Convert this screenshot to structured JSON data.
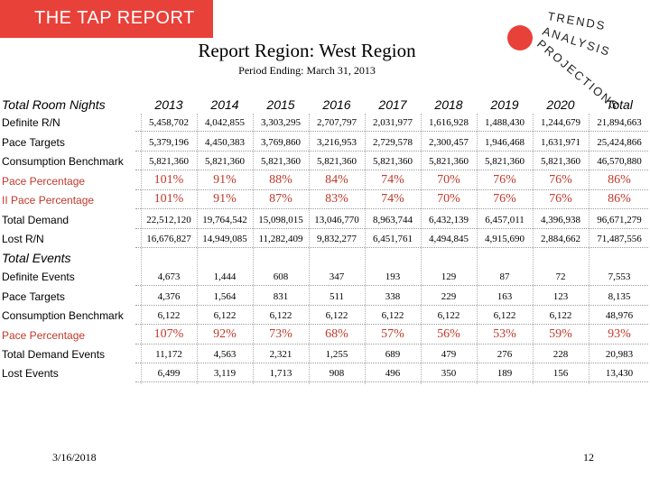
{
  "banner": "THE TAP REPORT",
  "logo_words": [
    "TRENDS",
    "ANALYSIS",
    "PROJECTIONS"
  ],
  "title": "Report Region: West Region",
  "period": "Period Ending: March 31, 2013",
  "room_section": "Total Room Nights",
  "events_section": "Total Events",
  "years": [
    "2013",
    "2014",
    "2015",
    "2016",
    "2017",
    "2018",
    "2019",
    "2020",
    "Total"
  ],
  "room_rows": [
    {
      "label": "Definite R/N",
      "type": "num",
      "values": [
        "5,458,702",
        "4,042,855",
        "3,303,295",
        "2,707,797",
        "2,031,977",
        "1,616,928",
        "1,488,430",
        "1,244,679",
        "21,894,663"
      ]
    },
    {
      "label": "Pace Targets",
      "type": "num",
      "values": [
        "5,379,196",
        "4,450,383",
        "3,769,860",
        "3,216,953",
        "2,729,578",
        "2,300,457",
        "1,946,468",
        "1,631,971",
        "25,424,866"
      ]
    },
    {
      "label": "Consumption Benchmark",
      "type": "num",
      "values": [
        "5,821,360",
        "5,821,360",
        "5,821,360",
        "5,821,360",
        "5,821,360",
        "5,821,360",
        "5,821,360",
        "5,821,360",
        "46,570,880"
      ]
    },
    {
      "label": "Pace Percentage",
      "type": "pace",
      "values": [
        "101%",
        "91%",
        "88%",
        "84%",
        "74%",
        "70%",
        "76%",
        "76%",
        "86%"
      ]
    },
    {
      "label": "II Pace Percentage",
      "type": "pace",
      "values": [
        "101%",
        "91%",
        "87%",
        "83%",
        "74%",
        "70%",
        "76%",
        "76%",
        "86%"
      ]
    },
    {
      "label": "Total Demand",
      "type": "num",
      "values": [
        "22,512,120",
        "19,764,542",
        "15,098,015",
        "13,046,770",
        "8,963,744",
        "6,432,139",
        "6,457,011",
        "4,396,938",
        "96,671,279"
      ]
    },
    {
      "label": "Lost R/N",
      "type": "num",
      "values": [
        "16,676,827",
        "14,949,085",
        "11,282,409",
        "9,832,277",
        "6,451,761",
        "4,494,845",
        "4,915,690",
        "2,884,662",
        "71,487,556"
      ]
    }
  ],
  "event_rows": [
    {
      "label": "Definite Events",
      "type": "num",
      "values": [
        "4,673",
        "1,444",
        "608",
        "347",
        "193",
        "129",
        "87",
        "72",
        "7,553"
      ]
    },
    {
      "label": "Pace Targets",
      "type": "num",
      "values": [
        "4,376",
        "1,564",
        "831",
        "511",
        "338",
        "229",
        "163",
        "123",
        "8,135"
      ]
    },
    {
      "label": "Consumption Benchmark",
      "type": "num",
      "values": [
        "6,122",
        "6,122",
        "6,122",
        "6,122",
        "6,122",
        "6,122",
        "6,122",
        "6,122",
        "48,976"
      ]
    },
    {
      "label": "Pace Percentage",
      "type": "pace",
      "values": [
        "107%",
        "92%",
        "73%",
        "68%",
        "57%",
        "56%",
        "53%",
        "59%",
        "93%"
      ]
    },
    {
      "label": "Total Demand Events",
      "type": "num",
      "values": [
        "11,172",
        "4,563",
        "2,321",
        "1,255",
        "689",
        "479",
        "276",
        "228",
        "20,983"
      ]
    },
    {
      "label": "Lost Events",
      "type": "num",
      "values": [
        "6,499",
        "3,119",
        "1,713",
        "908",
        "496",
        "350",
        "189",
        "156",
        "13,430"
      ]
    }
  ],
  "footer": {
    "date": "3/16/2018",
    "page": "12"
  },
  "colors": {
    "banner": "#e8413a",
    "pace_text": "#c0392b",
    "logo_dot": "#e8413a"
  }
}
